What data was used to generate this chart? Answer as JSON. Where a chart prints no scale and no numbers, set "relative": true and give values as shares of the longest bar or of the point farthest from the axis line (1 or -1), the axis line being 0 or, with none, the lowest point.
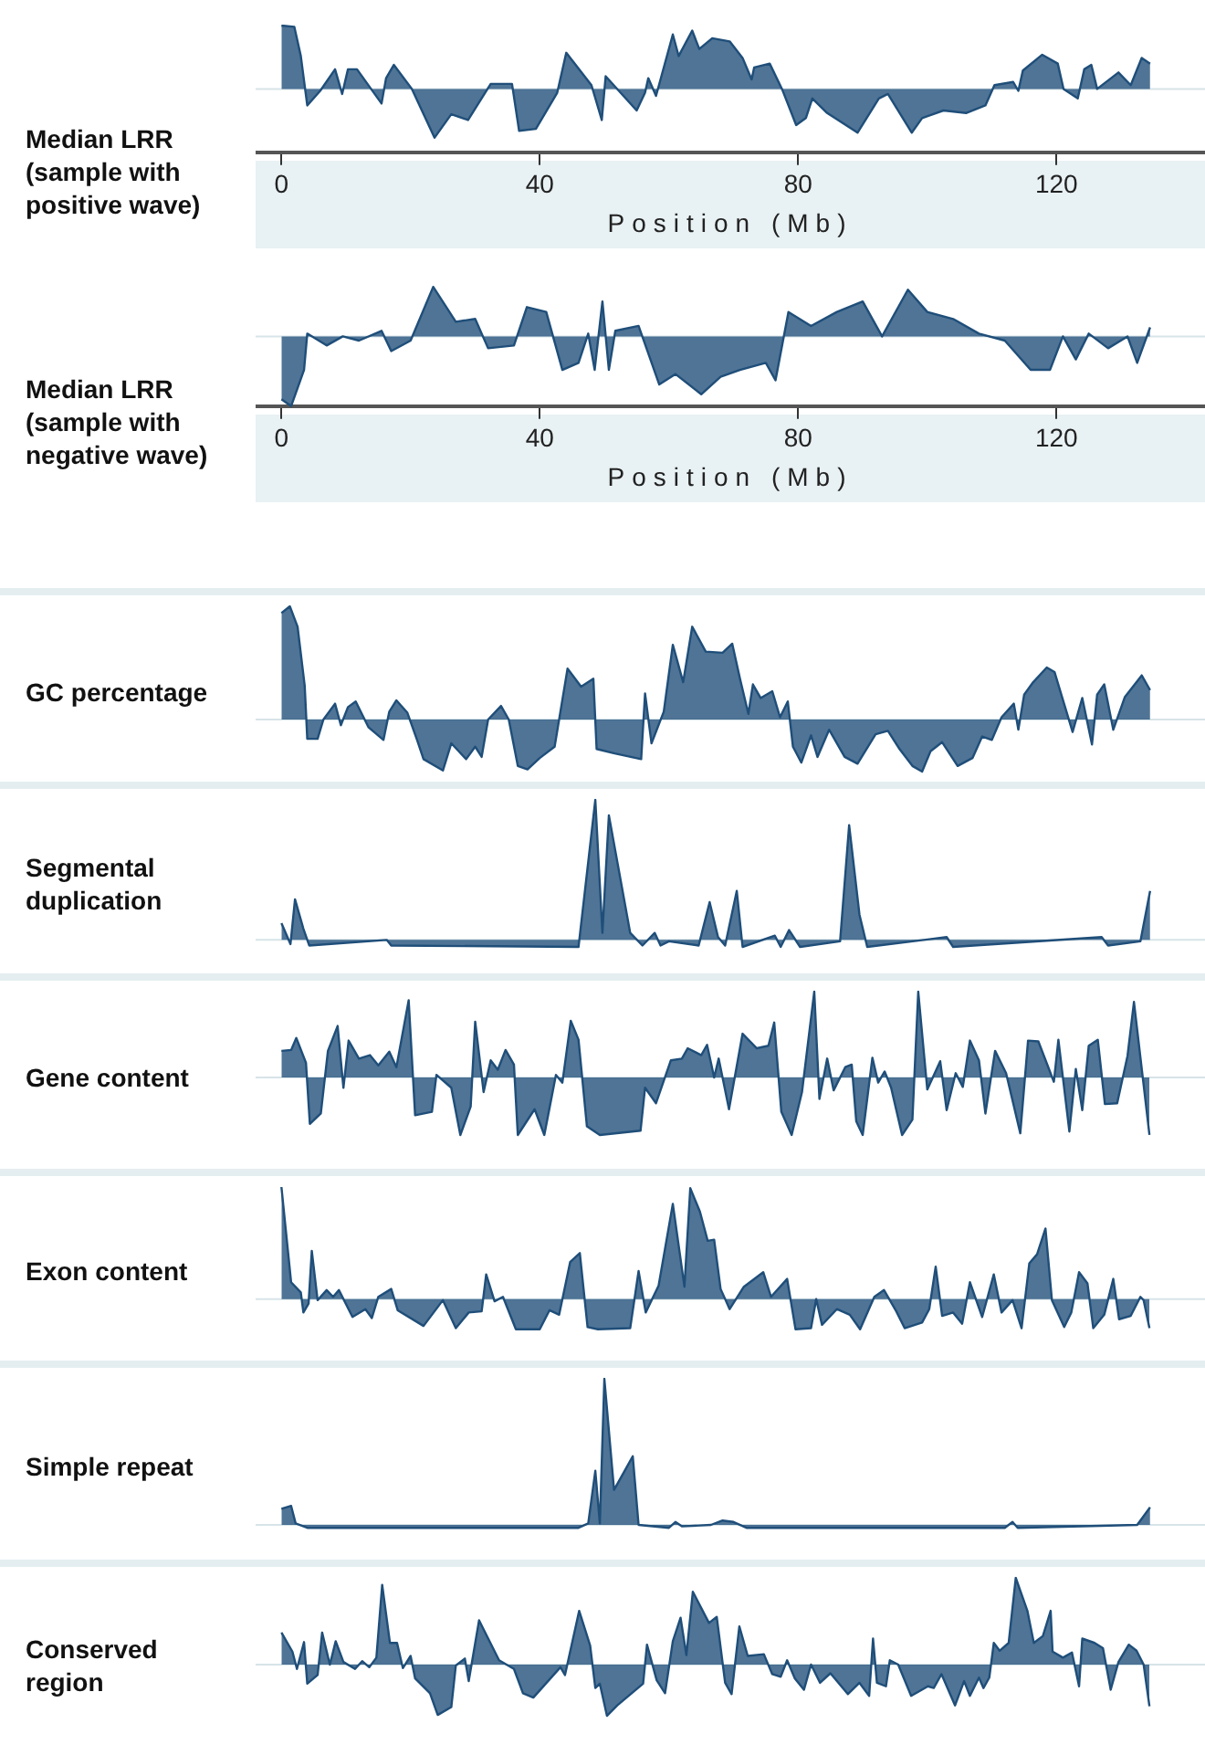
{
  "chart_data": [
    {
      "type": "area",
      "relative": true,
      "ylabel": "Median LRR (sample with positive wave)",
      "xlabel": "Position (Mb)",
      "xlim": [
        -4,
        143
      ],
      "xticks": [
        0,
        40,
        80,
        120
      ],
      "marker": "none",
      "color": "#1f4e79",
      "x": [
        0,
        2,
        3,
        4,
        6,
        8.3,
        9.4,
        10.3,
        11.7,
        15.5,
        16.2,
        17.4,
        20.2,
        23.7,
        26.3,
        28.9,
        32.4,
        35.7,
        36.8,
        39.4,
        42.7,
        44.1,
        48,
        49.6,
        50.2,
        55,
        56.3,
        56.8,
        58,
        60.6,
        61.5,
        63.6,
        64.7,
        66.7,
        69.4,
        71.4,
        72.8,
        73.2,
        75.6,
        77.5,
        79.7,
        81.2,
        82.2,
        84.5,
        89.2,
        92.5,
        93.9,
        97.6,
        99.2,
        102.5,
        106,
        109,
        110.4,
        113.3,
        114.1,
        114.8,
        117.8,
        120.2,
        121.1,
        123.3,
        124.3,
        125.4,
        126.3,
        129.6,
        131.5,
        133.2,
        134.5
      ],
      "values": [
        1,
        0.98,
        0.52,
        -0.26,
        -0.03,
        0.31,
        -0.08,
        0.31,
        0.31,
        -0.23,
        0.17,
        0.38,
        0,
        -0.77,
        -0.4,
        -0.49,
        0.08,
        0.08,
        -0.66,
        -0.63,
        -0.06,
        0.57,
        0.06,
        -0.49,
        0.2,
        -0.34,
        -0.06,
        0.17,
        -0.11,
        0.86,
        0.52,
        0.92,
        0.63,
        0.8,
        0.75,
        0.49,
        0.15,
        0.34,
        0.4,
        0,
        -0.57,
        -0.46,
        -0.15,
        -0.38,
        -0.69,
        -0.15,
        -0.08,
        -0.69,
        -0.46,
        -0.34,
        -0.38,
        -0.26,
        0.06,
        0.11,
        -0.03,
        0.29,
        0.54,
        0.4,
        0,
        -0.15,
        0.31,
        0.38,
        0,
        0.26,
        0.06,
        0.49,
        0.4
      ]
    },
    {
      "type": "area",
      "relative": true,
      "ylabel": "Median LRR (sample with negative wave)",
      "xlabel": "Position (Mb)",
      "xlim": [
        -4,
        143
      ],
      "xticks": [
        0,
        40,
        80,
        120
      ],
      "marker": "none",
      "color": "#1f4e79",
      "x": [
        0,
        1.5,
        3.5,
        4,
        7,
        9.5,
        12,
        15.5,
        17,
        20,
        23.5,
        27,
        30,
        32,
        36,
        38,
        41,
        43.5,
        46,
        47.5,
        48.5,
        49.7,
        50.7,
        51.7,
        55.3,
        58.5,
        61,
        65,
        68,
        71,
        75,
        76.5,
        78.5,
        82,
        86,
        90,
        93,
        97,
        100,
        104,
        108,
        112,
        116,
        119,
        121,
        123,
        125,
        128,
        131,
        132.5,
        134.5
      ],
      "values": [
        -0.9,
        -1,
        -0.48,
        0.04,
        -0.13,
        0,
        -0.06,
        0.08,
        -0.21,
        -0.06,
        0.71,
        0.21,
        0.25,
        -0.17,
        -0.13,
        0.42,
        0.35,
        -0.48,
        -0.38,
        0.04,
        -0.48,
        0.5,
        -0.48,
        0.08,
        0.15,
        -0.69,
        -0.54,
        -0.83,
        -0.58,
        -0.48,
        -0.38,
        -0.63,
        0.35,
        0.15,
        0.35,
        0.5,
        0,
        0.67,
        0.35,
        0.25,
        0.04,
        -0.06,
        -0.48,
        -0.48,
        0,
        -0.33,
        0.04,
        -0.17,
        0,
        -0.38,
        0.13
      ]
    },
    {
      "type": "area",
      "relative": true,
      "ylabel": "GC percentage",
      "xlim": [
        -4,
        143
      ],
      "tick_labels": false,
      "marker": "none",
      "color": "#1f4e79",
      "x": [
        0,
        1.3,
        2.5,
        3.6,
        4,
        5.6,
        6.5,
        8.3,
        9.2,
        10.3,
        11.5,
        13.5,
        15.8,
        16.7,
        17.8,
        19.5,
        21,
        22,
        25,
        26.3,
        28.6,
        30,
        31,
        32,
        34,
        35.2,
        36.6,
        38.1,
        40,
        42.3,
        44.3,
        46.4,
        48.3,
        48.8,
        51.6,
        55.7,
        56.3,
        57.3,
        59.2,
        60.6,
        62.2,
        63.6,
        65.7,
        68.3,
        69.8,
        71,
        72.3,
        73,
        74.2,
        76,
        77.2,
        78.4,
        79.2,
        80.5,
        82,
        83,
        84.8,
        87.2,
        89.2,
        92,
        93.9,
        95.7,
        97.7,
        99.2,
        100.5,
        102.3,
        104.7,
        107,
        108.5,
        110,
        111.5,
        113.4,
        114.1,
        115,
        116.4,
        118.5,
        119.7,
        122.5,
        124,
        125.5,
        126.3,
        127.4,
        128.8,
        130.6,
        133.2,
        134.5
      ],
      "values": [
        0.94,
        1,
        0.82,
        0.3,
        -0.17,
        -0.17,
        0,
        0.14,
        -0.05,
        0.11,
        0.16,
        -0.07,
        -0.18,
        0.07,
        0.17,
        0.06,
        -0.18,
        -0.35,
        -0.45,
        -0.21,
        -0.35,
        -0.24,
        -0.33,
        0,
        0.12,
        0,
        -0.41,
        -0.44,
        -0.34,
        -0.24,
        0.45,
        0.29,
        0.36,
        -0.26,
        -0.3,
        -0.35,
        0.23,
        -0.21,
        0.07,
        0.66,
        0.33,
        0.82,
        0.6,
        0.59,
        0.67,
        0.36,
        0.05,
        0.31,
        0.19,
        0.25,
        0.02,
        0.16,
        -0.24,
        -0.38,
        -0.14,
        -0.33,
        -0.09,
        -0.33,
        -0.39,
        -0.13,
        -0.1,
        -0.26,
        -0.41,
        -0.46,
        -0.28,
        -0.2,
        -0.41,
        -0.34,
        -0.15,
        -0.18,
        0.02,
        0.14,
        -0.09,
        0.22,
        0.33,
        0.46,
        0.42,
        -0.11,
        0.19,
        -0.22,
        0.22,
        0.31,
        -0.09,
        0.2,
        0.39,
        0.26
      ]
    },
    {
      "type": "area",
      "relative": true,
      "ylabel": "Segmental duplication",
      "xlim": [
        -4,
        143
      ],
      "tick_labels": false,
      "marker": "none",
      "color": "#1f4e79",
      "x": [
        0,
        1.4,
        2.1,
        3.4,
        4.3,
        16.3,
        17,
        46,
        48.6,
        49.7,
        50.7,
        54,
        55.9,
        57.8,
        58.7,
        60,
        64.6,
        66.3,
        67.6,
        68.7,
        70.5,
        71.4,
        76.4,
        77.3,
        78.6,
        80.3,
        86.5,
        87.9,
        89.5,
        90.7,
        103,
        104,
        127,
        128,
        133,
        134.5
      ],
      "values": [
        0.12,
        -0.03,
        0.29,
        0.08,
        -0.04,
        0,
        -0.04,
        -0.05,
        1,
        0.05,
        0.89,
        0.05,
        -0.04,
        0.05,
        -0.04,
        -0.01,
        -0.04,
        0.27,
        0.02,
        -0.04,
        0.35,
        -0.05,
        0.03,
        -0.05,
        0.07,
        -0.05,
        -0.01,
        0.82,
        0.18,
        -0.05,
        0.02,
        -0.05,
        0.02,
        -0.04,
        -0.01,
        0.35
      ]
    },
    {
      "type": "area",
      "relative": true,
      "ylabel": "Gene content",
      "xlim": [
        -4,
        143
      ],
      "tick_labels": false,
      "marker": "none",
      "color": "#1f4e79",
      "x": [
        0,
        1.5,
        2.3,
        3.8,
        4.4,
        6.1,
        7.2,
        8.7,
        9.6,
        10.4,
        12,
        13.7,
        15,
        16.7,
        17.8,
        19.7,
        20.7,
        23.3,
        24,
        26.3,
        27.7,
        29.3,
        30,
        31.3,
        32.4,
        33.5,
        34.7,
        36,
        36.6,
        39.2,
        40.7,
        42.5,
        43.5,
        44.8,
        46,
        47.3,
        49.3,
        55.6,
        56.3,
        58,
        60.3,
        62,
        62.9,
        65,
        65.9,
        67,
        67.7,
        69.3,
        71.4,
        73.6,
        75.4,
        76.3,
        77.4,
        79,
        80.6,
        82.5,
        83.3,
        84.5,
        85.5,
        87.3,
        88.3,
        89,
        90,
        91.5,
        92.4,
        93.4,
        94.4,
        96.1,
        97.7,
        98.6,
        100,
        102,
        103,
        104.4,
        105.5,
        106.6,
        108,
        109,
        110.5,
        112.2,
        114.4,
        115.6,
        117.2,
        119.6,
        120.3,
        122,
        123,
        124,
        125,
        126.4,
        127.5,
        129.4,
        131,
        132,
        134.4
      ],
      "values": [
        0.31,
        0.32,
        0.46,
        0.17,
        -0.54,
        -0.42,
        0.31,
        0.6,
        -0.12,
        0.43,
        0.22,
        0.26,
        0.14,
        0.3,
        0.12,
        0.9,
        -0.44,
        -0.4,
        0.03,
        -0.12,
        -0.67,
        -0.34,
        0.65,
        -0.17,
        0.2,
        0.09,
        0.32,
        0.15,
        -0.67,
        -0.37,
        -0.67,
        0.03,
        -0.06,
        0.66,
        0.44,
        -0.57,
        -0.67,
        -0.62,
        -0.12,
        -0.3,
        0.2,
        0.22,
        0.34,
        0.26,
        0.38,
        0,
        0.22,
        -0.37,
        0.51,
        0.34,
        0.37,
        0.64,
        -0.4,
        -0.67,
        -0.17,
        1,
        -0.25,
        0.22,
        -0.15,
        0.12,
        0.15,
        -0.51,
        -0.67,
        0.23,
        -0.06,
        0.07,
        -0.12,
        -0.67,
        -0.49,
        1,
        -0.14,
        0.19,
        -0.38,
        0.05,
        -0.11,
        0.43,
        0.2,
        -0.42,
        0.31,
        0.05,
        -0.65,
        0.43,
        0.42,
        -0.05,
        0.44,
        -0.63,
        0.1,
        -0.38,
        0.37,
        0.44,
        -0.31,
        -0.3,
        0.25,
        0.88,
        -0.67
      ]
    },
    {
      "type": "area",
      "relative": true,
      "ylabel": "Exon content",
      "xlim": [
        -4,
        143
      ],
      "tick_labels": false,
      "marker": "none",
      "color": "#1f4e79",
      "x": [
        0,
        1.5,
        3,
        3.4,
        4.2,
        4.7,
        5.6,
        7,
        8,
        8.9,
        11,
        13,
        14,
        15,
        17,
        18,
        22,
        25,
        27,
        29,
        31,
        31.7,
        33,
        34.3,
        36.3,
        40,
        41.5,
        43,
        44.7,
        46.2,
        47.4,
        49,
        54,
        55.3,
        56.4,
        58.4,
        60.6,
        62.4,
        63.3,
        64.8,
        66,
        67,
        68,
        69.4,
        71.6,
        74.6,
        75.8,
        78.3,
        79.6,
        82,
        82.8,
        83.7,
        86,
        88,
        89.6,
        91.8,
        93.3,
        95.2,
        96.5,
        99.2,
        100.3,
        101.3,
        102.3,
        104,
        105.4,
        106.6,
        108.5,
        110.3,
        111.5,
        113.2,
        114.6,
        115.8,
        117,
        118.3,
        119.3,
        121.2,
        122.3,
        123.5,
        124.8,
        125.7,
        127.4,
        128.8,
        129.7,
        131.5,
        133,
        133.5,
        134.4
      ],
      "values": [
        1,
        0.15,
        0.06,
        -0.12,
        -0.04,
        0.43,
        -0.01,
        0.08,
        0.02,
        0.08,
        -0.16,
        -0.09,
        -0.17,
        0.02,
        0.09,
        -0.1,
        -0.24,
        -0.01,
        -0.26,
        -0.12,
        -0.11,
        0.22,
        -0.02,
        0.02,
        -0.27,
        -0.27,
        -0.1,
        -0.14,
        0.33,
        0.41,
        -0.25,
        -0.27,
        -0.26,
        0.25,
        -0.12,
        0.12,
        0.85,
        0.11,
        0.99,
        0.78,
        0.52,
        0.53,
        0.09,
        -0.09,
        0.11,
        0.24,
        0.02,
        0.18,
        -0.27,
        -0.26,
        0,
        -0.23,
        -0.09,
        -0.14,
        -0.27,
        0.02,
        0.08,
        -0.11,
        -0.26,
        -0.21,
        -0.09,
        0.29,
        -0.15,
        -0.12,
        -0.22,
        0.15,
        -0.16,
        0.22,
        -0.12,
        -0.01,
        -0.26,
        0.32,
        0.4,
        0.63,
        -0.01,
        -0.25,
        -0.12,
        0.24,
        0.14,
        -0.26,
        -0.14,
        0.18,
        -0.18,
        -0.15,
        0.02,
        -0.01,
        -0.26
      ]
    },
    {
      "type": "area",
      "relative": true,
      "ylabel": "Simple repeat",
      "xlim": [
        -4,
        143
      ],
      "tick_labels": false,
      "marker": "none",
      "color": "#1f4e79",
      "x": [
        0,
        1.5,
        2.2,
        4,
        46,
        47.5,
        48.6,
        49.3,
        50,
        51.5,
        54.4,
        55.3,
        60,
        61,
        62,
        66.5,
        68.3,
        70,
        72,
        112,
        113.2,
        114,
        132.5,
        134.5
      ],
      "values": [
        0.11,
        0.13,
        0.01,
        -0.02,
        -0.02,
        0.01,
        0.37,
        0.01,
        1,
        0.24,
        0.47,
        0,
        -0.02,
        0.02,
        -0.01,
        0,
        0.03,
        0.02,
        -0.02,
        -0.02,
        0.02,
        -0.02,
        0,
        0.12
      ]
    },
    {
      "type": "area",
      "relative": true,
      "ylabel": "Conserved region",
      "xlim": [
        -4,
        143
      ],
      "tick_labels": false,
      "marker": "none",
      "color": "#1f4e79",
      "x": [
        0,
        1.7,
        2.4,
        3.5,
        4,
        5.6,
        6.3,
        7.5,
        8.4,
        9.6,
        11.4,
        12.5,
        13.6,
        14.7,
        15.6,
        16.8,
        17.9,
        18.8,
        20,
        20.7,
        23,
        24.2,
        26.3,
        27,
        28.4,
        29,
        30.6,
        33.7,
        36,
        37.4,
        39,
        41.4,
        43.2,
        43.9,
        46.1,
        47.8,
        48.6,
        49.3,
        50.4,
        52,
        56,
        56.6,
        58.1,
        59.4,
        60.6,
        61.8,
        62.7,
        63.7,
        66.2,
        67.4,
        68.7,
        69.7,
        70.9,
        72.2,
        74.7,
        75.2,
        76,
        77.3,
        78.3,
        79.5,
        80.9,
        82,
        83.4,
        85,
        87.7,
        89.5,
        91,
        91.6,
        92.2,
        93.6,
        94.2,
        95.5,
        97.5,
        100.1,
        101,
        102.2,
        104.3,
        105.7,
        106.6,
        108,
        108.7,
        109.6,
        110.3,
        111.2,
        112.6,
        113.7,
        115.5,
        116.5,
        117.9,
        119.1,
        119.4,
        121,
        122.4,
        123.5,
        124,
        125.9,
        127.2,
        128.4,
        129.6,
        131.2,
        132.4,
        133.5,
        134.4
      ],
      "values": [
        0.37,
        0.15,
        -0.05,
        0.26,
        -0.22,
        -0.12,
        0.37,
        0,
        0.27,
        0.03,
        -0.05,
        0.04,
        -0.03,
        0.08,
        0.92,
        0.25,
        0.25,
        -0.04,
        0.1,
        -0.16,
        -0.33,
        -0.58,
        -0.49,
        -0.01,
        0.07,
        -0.19,
        0.51,
        0.05,
        -0.05,
        -0.33,
        -0.38,
        -0.18,
        -0.03,
        -0.12,
        0.62,
        0.22,
        -0.27,
        -0.22,
        -0.59,
        -0.47,
        -0.22,
        0.23,
        -0.18,
        -0.33,
        0.27,
        0.54,
        0.11,
        0.84,
        0.48,
        0.55,
        -0.21,
        -0.34,
        0.44,
        0.1,
        0.12,
        0.03,
        -0.11,
        -0.14,
        0.05,
        -0.16,
        -0.29,
        0,
        -0.21,
        -0.1,
        -0.34,
        -0.21,
        -0.36,
        0.3,
        -0.21,
        -0.25,
        0.05,
        0,
        -0.36,
        -0.25,
        -0.27,
        -0.11,
        -0.47,
        -0.19,
        -0.36,
        -0.15,
        -0.27,
        -0.15,
        0.25,
        0.16,
        0.25,
        1,
        0.62,
        0.25,
        0.33,
        0.62,
        0.15,
        0.08,
        0.14,
        -0.25,
        0.3,
        0.25,
        0.19,
        -0.29,
        0.03,
        0.23,
        0.16,
        0,
        -0.48
      ]
    }
  ]
}
